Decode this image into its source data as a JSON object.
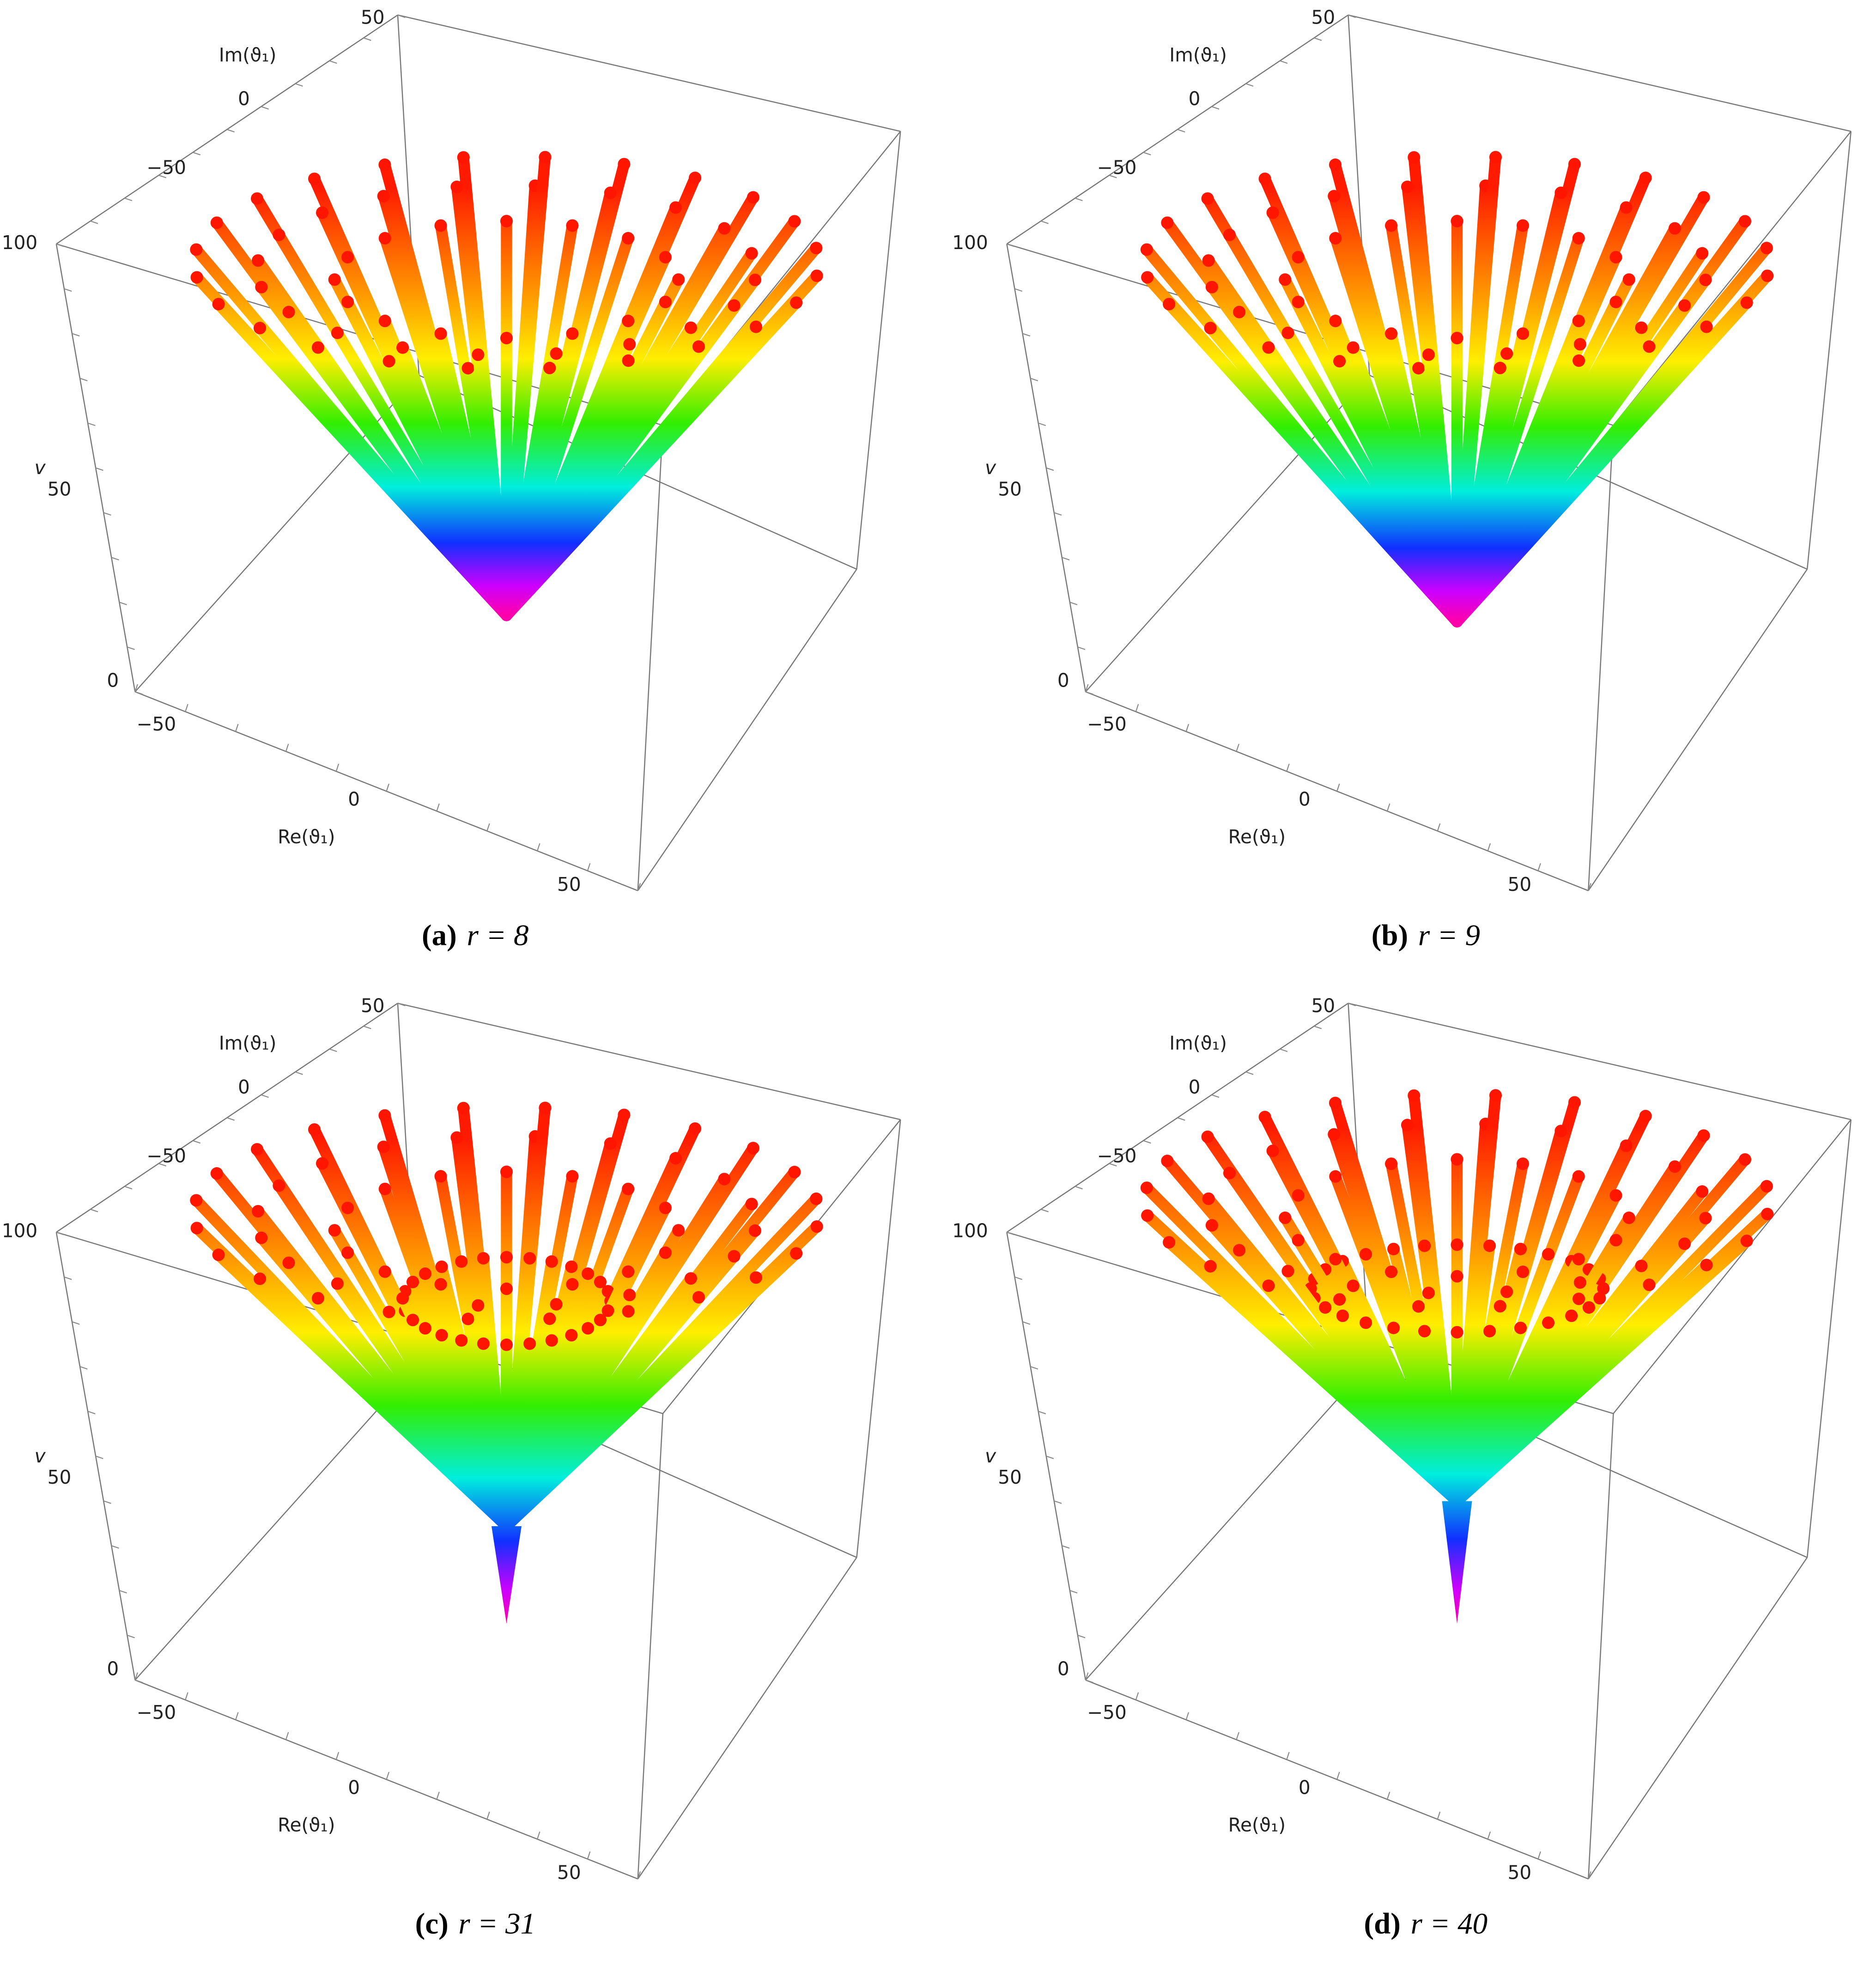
{
  "panels": [
    {
      "tag": "(a)",
      "caption": "r = 8",
      "z_label": "v",
      "z_ticks": [
        "100",
        "50",
        "0"
      ],
      "x_label": "Re(ϑ₁)",
      "x_ticks": [
        "−50",
        "0",
        "50"
      ],
      "y_label": "Im(ϑ₁)",
      "y_ticks": [
        "50",
        "0",
        "−50"
      ]
    },
    {
      "tag": "(b)",
      "caption": "r = 9",
      "z_label": "v",
      "z_ticks": [
        "100",
        "50",
        "0"
      ],
      "x_label": "Re(ϑ₁)",
      "x_ticks": [
        "−50",
        "0",
        "50"
      ],
      "y_label": "Im(ϑ₁)",
      "y_ticks": [
        "50",
        "0",
        "−50"
      ]
    },
    {
      "tag": "(c)",
      "caption": "r = 31",
      "z_label": "v",
      "z_ticks": [
        "100",
        "50",
        "0"
      ],
      "x_label": "Re(ϑ₁)",
      "x_ticks": [
        "−50",
        "0",
        "50"
      ],
      "y_label": "Im(ϑ₁)",
      "y_ticks": [
        "50",
        "0",
        "−50"
      ]
    },
    {
      "tag": "(d)",
      "caption": "r = 40",
      "z_label": "v",
      "z_ticks": [
        "100",
        "50",
        "0"
      ],
      "x_label": "Re(ϑ₁)",
      "x_ticks": [
        "−50",
        "0",
        "50"
      ],
      "y_label": "Im(ϑ₁)",
      "y_ticks": [
        "50",
        "0",
        "−50"
      ]
    }
  ]
}
